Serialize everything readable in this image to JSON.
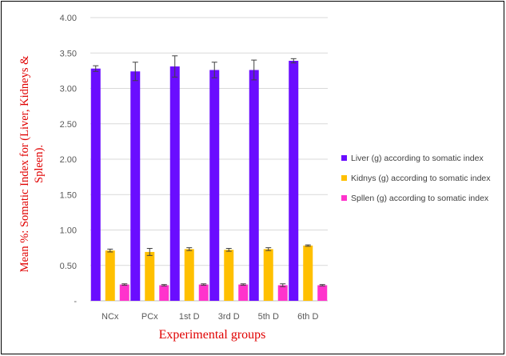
{
  "chart_data": {
    "type": "bar",
    "xlabel": "Experimental groups",
    "ylabel": "Mean %: Somatic Index for (Liver, Kidneys & Spleen).",
    "ylim": [
      0,
      4
    ],
    "ytick_labels": [
      "-",
      "0.50",
      "1.00",
      "1.50",
      "2.00",
      "2.50",
      "3.00",
      "3.50",
      "4.00"
    ],
    "grid": true,
    "legend_position": "right",
    "categories": [
      "NCx",
      "PCx",
      "1st D",
      "3rd D",
      "5th D",
      "6th D"
    ],
    "series": [
      {
        "name": "Liver (g) according to somatic index",
        "color": "#6a0dff",
        "values": [
          3.28,
          3.24,
          3.31,
          3.26,
          3.26,
          3.39
        ],
        "errors": [
          0.04,
          0.13,
          0.15,
          0.11,
          0.14,
          0.03
        ]
      },
      {
        "name": "Kidnys (g) according to somatic index",
        "color": "#ffc000",
        "values": [
          0.71,
          0.69,
          0.73,
          0.72,
          0.73,
          0.78
        ],
        "errors": [
          0.02,
          0.05,
          0.02,
          0.02,
          0.02,
          0.01
        ]
      },
      {
        "name": "Spllen (g) according to somatic index",
        "color": "#ff33cc",
        "values": [
          0.23,
          0.22,
          0.23,
          0.23,
          0.22,
          0.22
        ],
        "errors": [
          0.01,
          0.01,
          0.01,
          0.01,
          0.02,
          0.01
        ]
      }
    ],
    "ylabel_color": "#e00000",
    "xlabel_color": "#e00000"
  }
}
